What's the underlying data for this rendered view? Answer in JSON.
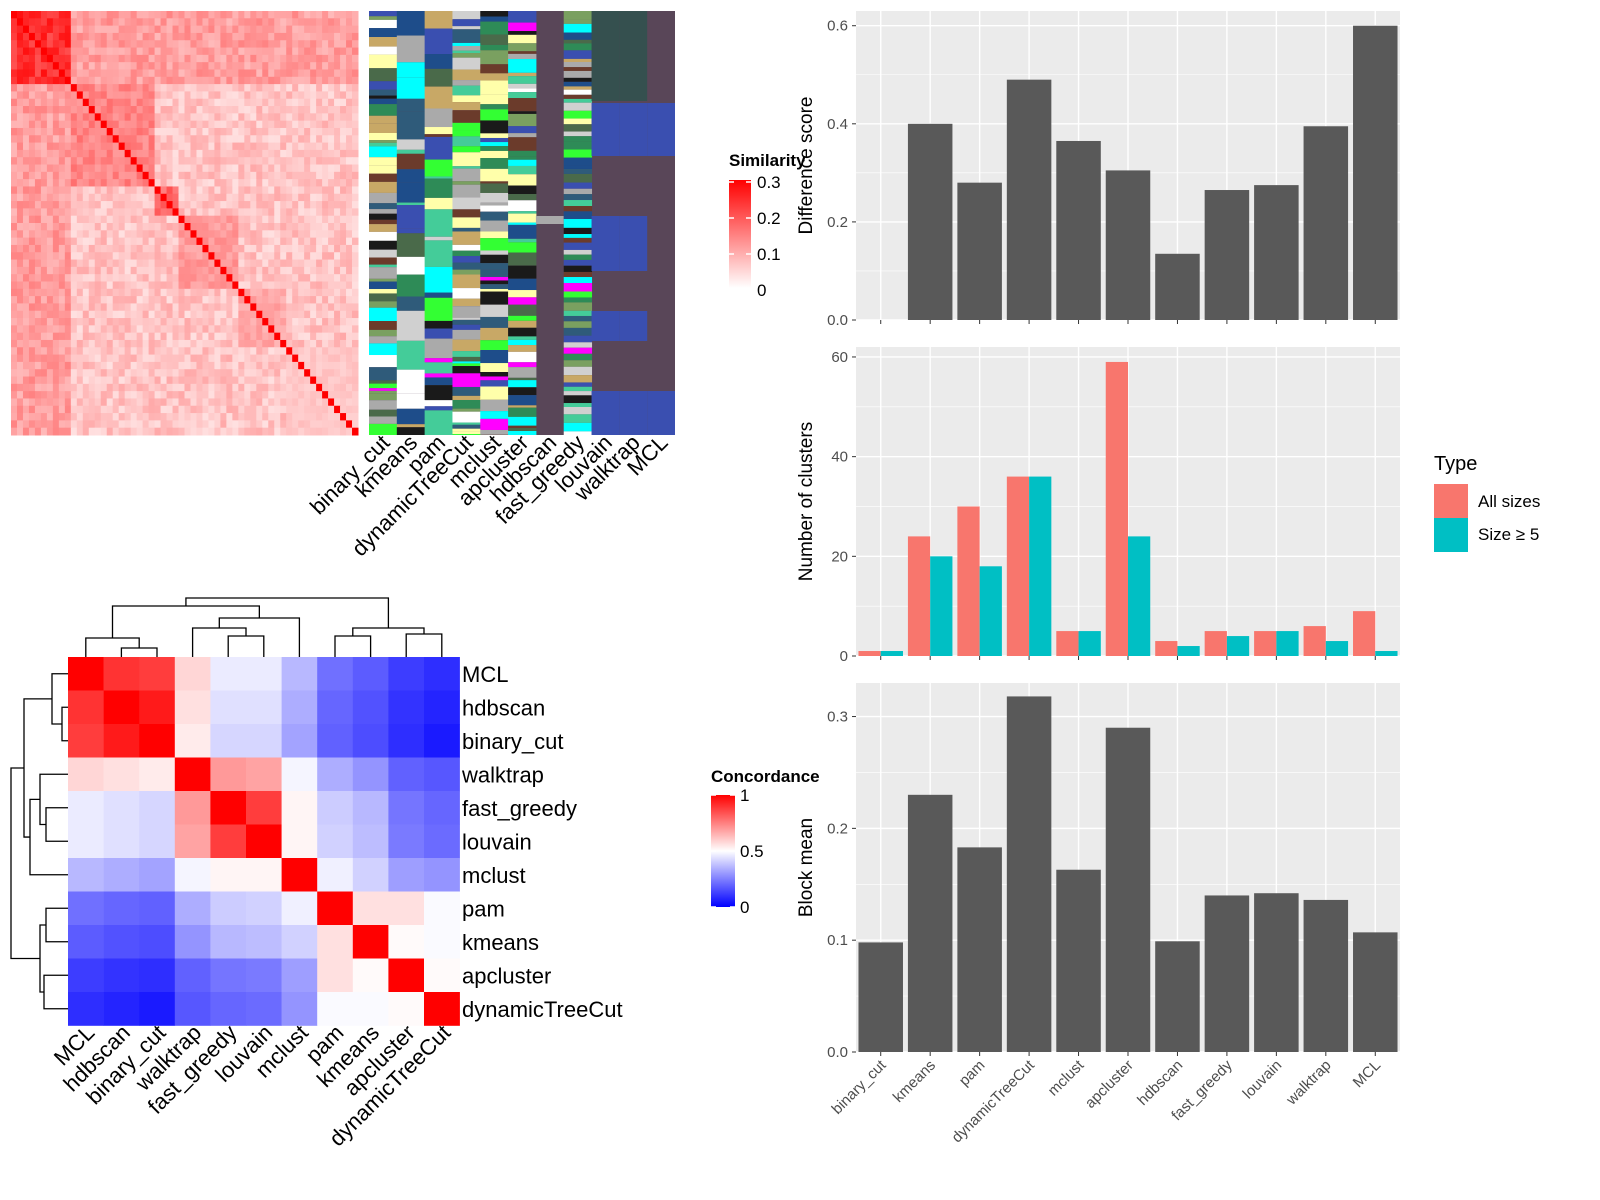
{
  "chart_data": [
    {
      "type": "heatmap",
      "panel": "similarity_heatmap",
      "legend_title": "Similarity",
      "legend_ticks": [
        0,
        0.1,
        0.2,
        0.3
      ],
      "color_low": "#ffffff",
      "color_high": "#ff0000",
      "annotation_columns": [
        "binary_cut",
        "kmeans",
        "pam",
        "dynamicTreeCut",
        "mclust",
        "apcluster",
        "hdbscan",
        "fast_greedy",
        "louvain",
        "walktrap",
        "MCL"
      ],
      "annotation_background": "#594658"
    },
    {
      "type": "heatmap",
      "panel": "concordance_heatmap",
      "legend_title": "Concordance",
      "legend_ticks": [
        0,
        0.5,
        1
      ],
      "color_low": "#0000ff",
      "color_mid": "#ffffff",
      "color_high": "#ff0000",
      "labels": [
        "MCL",
        "hdbscan",
        "binary_cut",
        "walktrap",
        "fast_greedy",
        "louvain",
        "mclust",
        "pam",
        "kmeans",
        "apcluster",
        "dynamicTreeCut"
      ],
      "values": [
        [
          1.0,
          0.9,
          0.88,
          0.58,
          0.46,
          0.46,
          0.36,
          0.22,
          0.18,
          0.12,
          0.09
        ],
        [
          0.9,
          1.0,
          0.95,
          0.56,
          0.44,
          0.44,
          0.34,
          0.2,
          0.16,
          0.1,
          0.07
        ],
        [
          0.88,
          0.95,
          1.0,
          0.54,
          0.42,
          0.42,
          0.32,
          0.19,
          0.15,
          0.09,
          0.05
        ],
        [
          0.58,
          0.56,
          0.54,
          1.0,
          0.7,
          0.68,
          0.48,
          0.34,
          0.29,
          0.19,
          0.17
        ],
        [
          0.46,
          0.44,
          0.42,
          0.7,
          1.0,
          0.88,
          0.52,
          0.4,
          0.36,
          0.23,
          0.2
        ],
        [
          0.46,
          0.44,
          0.42,
          0.68,
          0.88,
          1.0,
          0.52,
          0.41,
          0.37,
          0.24,
          0.21
        ],
        [
          0.36,
          0.34,
          0.32,
          0.48,
          0.52,
          0.52,
          1.0,
          0.47,
          0.41,
          0.31,
          0.29
        ],
        [
          0.22,
          0.2,
          0.19,
          0.34,
          0.4,
          0.41,
          0.47,
          1.0,
          0.56,
          0.56,
          0.49
        ],
        [
          0.18,
          0.16,
          0.15,
          0.29,
          0.36,
          0.37,
          0.41,
          0.56,
          1.0,
          0.51,
          0.49
        ],
        [
          0.12,
          0.1,
          0.09,
          0.19,
          0.23,
          0.24,
          0.31,
          0.56,
          0.51,
          1.0,
          0.51
        ],
        [
          0.09,
          0.07,
          0.05,
          0.17,
          0.2,
          0.21,
          0.29,
          0.49,
          0.49,
          0.51,
          1.0
        ]
      ]
    },
    {
      "type": "bar",
      "panel": "difference_score",
      "ylabel": "Difference score",
      "ylim": [
        0,
        0.63
      ],
      "yticks": [
        0.0,
        0.2,
        0.4,
        0.6
      ],
      "ytick_labels": [
        "0.0",
        "0.2",
        "0.4",
        "0.6"
      ],
      "values": [
        0.0,
        0.4,
        0.28,
        0.49,
        0.365,
        0.305,
        0.135,
        0.265,
        0.275,
        0.395,
        0.6
      ],
      "bar_color": "#595959"
    },
    {
      "type": "bar",
      "panel": "number_of_clusters",
      "ylabel": "Number of clusters",
      "ylim": [
        0,
        62
      ],
      "yticks": [
        0,
        20,
        40,
        60
      ],
      "ytick_labels": [
        "0",
        "20",
        "40",
        "60"
      ],
      "legend_title": "Type",
      "series": [
        {
          "name": "All sizes",
          "color": "#F8766D",
          "values": [
            1,
            24,
            30,
            36,
            5,
            59,
            3,
            5,
            5,
            6,
            9
          ]
        },
        {
          "name": "Size ≥ 5",
          "color": "#00BFC4",
          "values": [
            1,
            20,
            18,
            36,
            5,
            24,
            2,
            4,
            5,
            3,
            1
          ]
        }
      ]
    },
    {
      "type": "bar",
      "panel": "block_mean",
      "ylabel": "Block mean",
      "ylim": [
        0,
        0.33
      ],
      "yticks": [
        0.0,
        0.1,
        0.2,
        0.3
      ],
      "ytick_labels": [
        "0.0",
        "0.1",
        "0.2",
        "0.3"
      ],
      "values": [
        0.098,
        0.23,
        0.183,
        0.318,
        0.163,
        0.29,
        0.099,
        0.14,
        0.142,
        0.136,
        0.107
      ],
      "bar_color": "#595959"
    }
  ],
  "categories": [
    "binary_cut",
    "kmeans",
    "pam",
    "dynamicTreeCut",
    "mclust",
    "apcluster",
    "hdbscan",
    "fast_greedy",
    "louvain",
    "walktrap",
    "MCL"
  ]
}
